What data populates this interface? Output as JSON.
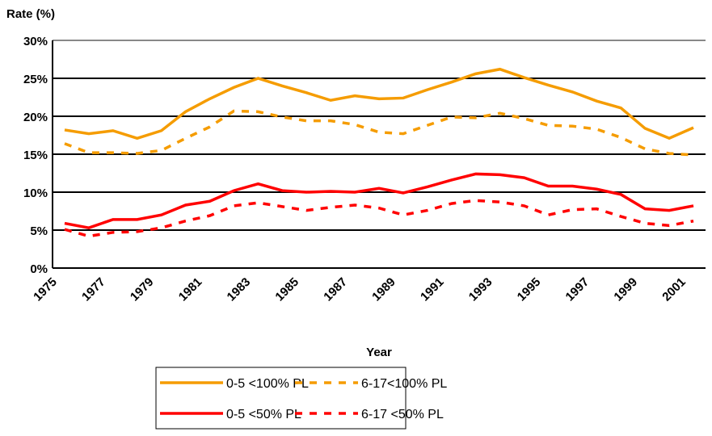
{
  "chart_data": {
    "type": "line",
    "y_axis_label": "Rate (%)",
    "x_axis_label": "Year",
    "categories": [
      "1975",
      null,
      "1977",
      null,
      "1979",
      null,
      "1981",
      null,
      "1983",
      null,
      "1985",
      null,
      "1987",
      null,
      "1989",
      null,
      "1991",
      null,
      "1993",
      null,
      "1995",
      null,
      "1997",
      null,
      "1999",
      null,
      "2001"
    ],
    "ylim": [
      0,
      30
    ],
    "yticks": [
      {
        "value": 0,
        "label": "0%"
      },
      {
        "value": 5,
        "label": "5%"
      },
      {
        "value": 10,
        "label": "10%"
      },
      {
        "value": 15,
        "label": "15%"
      },
      {
        "value": 20,
        "label": "20%"
      },
      {
        "value": 25,
        "label": "25%"
      },
      {
        "value": 30,
        "label": "30%"
      }
    ],
    "grid": true,
    "legend": "bottom",
    "series": [
      {
        "name": "0-5 <100% PL",
        "color": "#f59c00",
        "dashed": false,
        "values": [
          18.2,
          17.7,
          18.1,
          17.1,
          18.1,
          20.6,
          22.3,
          23.8,
          25.0,
          24.0,
          23.1,
          22.1,
          22.7,
          22.3,
          22.4,
          23.5,
          24.5,
          25.6,
          26.2,
          25.1,
          24.1,
          23.2,
          22.0,
          21.1,
          18.4,
          17.1,
          18.5
        ]
      },
      {
        "name": "6-17<100% PL",
        "color": "#f59c00",
        "dashed": true,
        "values": [
          16.4,
          15.2,
          15.2,
          15.1,
          15.5,
          17.1,
          18.6,
          20.7,
          20.6,
          19.9,
          19.4,
          19.4,
          18.9,
          17.9,
          17.7,
          18.8,
          19.9,
          19.8,
          20.4,
          19.7,
          18.8,
          18.7,
          18.3,
          17.2,
          15.7,
          15.1,
          14.9
        ]
      },
      {
        "name": "0-5 <50% PL",
        "color": "#ff0000",
        "dashed": false,
        "values": [
          5.9,
          5.3,
          6.4,
          6.4,
          7.0,
          8.3,
          8.8,
          10.2,
          11.1,
          10.2,
          10.0,
          10.1,
          10.0,
          10.5,
          9.9,
          10.7,
          11.6,
          12.4,
          12.3,
          11.9,
          10.8,
          10.8,
          10.4,
          9.7,
          7.8,
          7.6,
          8.2
        ]
      },
      {
        "name": "6-17 <50% PL",
        "color": "#ff0000",
        "dashed": true,
        "values": [
          5.1,
          4.2,
          4.7,
          4.8,
          5.3,
          6.2,
          6.9,
          8.2,
          8.6,
          8.1,
          7.6,
          8.0,
          8.3,
          7.9,
          7.0,
          7.6,
          8.5,
          8.9,
          8.7,
          8.2,
          7.0,
          7.7,
          7.8,
          6.8,
          5.9,
          5.6,
          6.2
        ]
      }
    ]
  }
}
